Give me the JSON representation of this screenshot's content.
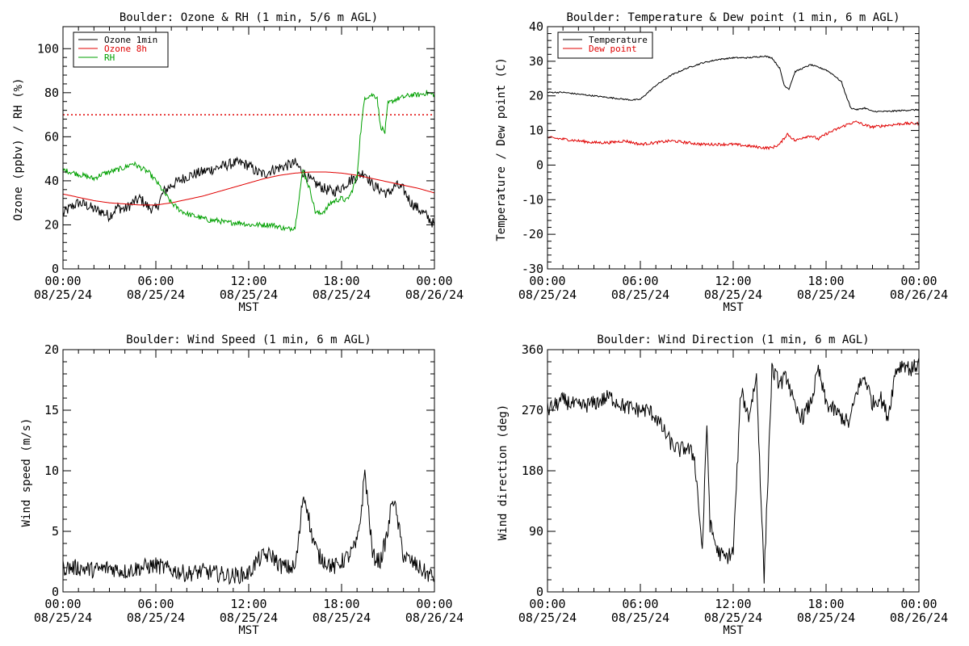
{
  "chart_data": [
    {
      "id": "ozone-rh",
      "type": "line",
      "title": "Boulder: Ozone & RH (1 min, 5/6 m AGL)",
      "xlabel": "MST",
      "ylabel": "Ozone (ppbv) / RH (%)",
      "xlim": [
        0,
        24
      ],
      "ylim": [
        0,
        110
      ],
      "xticks": [
        {
          "value": 0,
          "label": "00:00",
          "date": "08/25/24"
        },
        {
          "value": 6,
          "label": "06:00",
          "date": "08/25/24"
        },
        {
          "value": 12,
          "label": "12:00",
          "date": "08/25/24"
        },
        {
          "value": 18,
          "label": "18:00",
          "date": "08/25/24"
        },
        {
          "value": 24,
          "label": "00:00",
          "date": "08/26/24"
        }
      ],
      "yticks": [
        0,
        20,
        40,
        60,
        80,
        100
      ],
      "legend_position": "top-left",
      "reference_lines": [
        {
          "y": 70,
          "color": "#e00000",
          "style": "dotted"
        }
      ],
      "series": [
        {
          "name": "Ozone 1min",
          "color": "#000000",
          "noise": 2.5,
          "x": [
            0,
            0.5,
            1,
            1.5,
            2,
            2.5,
            3,
            3.5,
            4,
            4.5,
            5,
            5.5,
            6,
            6.5,
            7,
            7.5,
            8,
            8.5,
            9,
            9.5,
            10,
            10.5,
            11,
            11.5,
            12,
            12.5,
            13,
            13.5,
            14,
            14.5,
            15,
            15.5,
            16,
            16.5,
            17,
            17.5,
            18,
            18.5,
            19,
            19.5,
            20,
            20.5,
            21,
            21.5,
            22,
            22.5,
            23,
            23.5,
            24
          ],
          "y": [
            25,
            28,
            30,
            29,
            27,
            26,
            24,
            28,
            27,
            30,
            32,
            28,
            27,
            35,
            38,
            40,
            42,
            43,
            44,
            45,
            46,
            47,
            48,
            48,
            47,
            44,
            43,
            45,
            46,
            47,
            48,
            44,
            40,
            38,
            36,
            35,
            37,
            40,
            42,
            44,
            38,
            36,
            34,
            38,
            36,
            30,
            27,
            24,
            20
          ]
        },
        {
          "name": "Ozone 8h",
          "color": "#e00000",
          "noise": 0,
          "x": [
            0,
            1,
            2,
            3,
            4,
            5,
            6,
            7,
            8,
            9,
            10,
            11,
            12,
            13,
            14,
            15,
            16,
            17,
            18,
            19,
            20,
            21,
            22,
            23,
            24
          ],
          "y": [
            34,
            32.5,
            31,
            30,
            29.5,
            29,
            29,
            30,
            31.5,
            33,
            35,
            37,
            39,
            41,
            42.5,
            43.5,
            44,
            44,
            43.5,
            42.5,
            41,
            39.5,
            38,
            36.5,
            34.5
          ]
        },
        {
          "name": "RH",
          "color": "#00a000",
          "noise": 1.2,
          "x": [
            0,
            0.5,
            1,
            1.5,
            2,
            2.5,
            3,
            3.5,
            4,
            4.5,
            5,
            5.5,
            6,
            6.5,
            7,
            7.5,
            8,
            8.5,
            9,
            9.5,
            10,
            10.5,
            11,
            11.5,
            12,
            12.5,
            13,
            13.5,
            14,
            14.5,
            15,
            15.2,
            15.5,
            16,
            16.3,
            16.6,
            17,
            17.3,
            17.6,
            18,
            18.3,
            18.6,
            19,
            19.2,
            19.5,
            20,
            20.3,
            20.5,
            20.8,
            21,
            21.5,
            22,
            22.5,
            23,
            23.5,
            24
          ],
          "y": [
            45,
            44,
            43,
            42,
            41,
            43,
            44,
            45,
            46,
            48,
            46,
            44,
            40,
            35,
            30,
            27,
            25,
            24,
            23,
            22,
            22,
            21,
            21,
            21,
            20,
            20,
            20,
            20,
            19,
            18,
            19,
            30,
            45,
            35,
            26,
            25,
            27,
            30,
            31,
            32,
            31,
            34,
            42,
            60,
            78,
            79,
            78,
            65,
            62,
            75,
            77,
            78,
            79,
            79,
            80,
            79
          ]
        }
      ]
    },
    {
      "id": "temp-dew",
      "type": "line",
      "title": "Boulder: Temperature & Dew point (1 min, 6 m AGL)",
      "xlabel": "MST",
      "ylabel": "Temperature / Dew point (C)",
      "xlim": [
        0,
        24
      ],
      "ylim": [
        -30,
        40
      ],
      "xticks": [
        {
          "value": 0,
          "label": "00:00",
          "date": "08/25/24"
        },
        {
          "value": 6,
          "label": "06:00",
          "date": "08/25/24"
        },
        {
          "value": 12,
          "label": "12:00",
          "date": "08/25/24"
        },
        {
          "value": 18,
          "label": "18:00",
          "date": "08/25/24"
        },
        {
          "value": 24,
          "label": "00:00",
          "date": "08/26/24"
        }
      ],
      "yticks": [
        -30,
        -20,
        -10,
        0,
        10,
        20,
        30,
        40
      ],
      "legend_position": "top-left",
      "series": [
        {
          "name": "Temperature",
          "color": "#000000",
          "noise": 0.2,
          "x": [
            0,
            1,
            2,
            3,
            4,
            5,
            5.5,
            6,
            6.5,
            7,
            8,
            9,
            10,
            11,
            12,
            13,
            14,
            14.5,
            15,
            15.3,
            15.6,
            16,
            17,
            18,
            18.5,
            19,
            19.3,
            19.6,
            20,
            20.5,
            21,
            22,
            23,
            24
          ],
          "y": [
            21,
            21,
            20.5,
            20,
            19.5,
            19,
            18.8,
            19,
            21,
            23,
            26,
            28,
            29.5,
            30.5,
            31,
            31,
            31.5,
            31,
            28,
            23,
            22,
            27,
            29,
            27.5,
            26,
            24,
            20,
            16.5,
            16,
            16.5,
            15.5,
            15.5,
            15.8,
            16
          ]
        },
        {
          "name": "Dew point",
          "color": "#e00000",
          "noise": 0.4,
          "x": [
            0,
            1,
            2,
            3,
            4,
            5,
            6,
            7,
            8,
            9,
            10,
            11,
            12,
            13,
            14,
            14.5,
            15,
            15.5,
            16,
            16.5,
            17,
            17.5,
            18,
            18.5,
            19,
            19.5,
            20,
            20.5,
            21,
            22,
            23,
            24
          ],
          "y": [
            8,
            7.5,
            7,
            6.5,
            6.5,
            7,
            6,
            6.5,
            7,
            6.5,
            6,
            6,
            6,
            5.5,
            5,
            5,
            6,
            9,
            7,
            8,
            8.5,
            7.5,
            9,
            10,
            11,
            12,
            12.5,
            11.5,
            11,
            11.5,
            12,
            12
          ]
        }
      ]
    },
    {
      "id": "wind-speed",
      "type": "line",
      "title": "Boulder: Wind Speed (1 min, 6 m AGL)",
      "xlabel": "MST",
      "ylabel": "Wind speed (m/s)",
      "xlim": [
        0,
        24
      ],
      "ylim": [
        0,
        20
      ],
      "xticks": [
        {
          "value": 0,
          "label": "00:00",
          "date": "08/25/24"
        },
        {
          "value": 6,
          "label": "06:00",
          "date": "08/25/24"
        },
        {
          "value": 12,
          "label": "12:00",
          "date": "08/25/24"
        },
        {
          "value": 18,
          "label": "18:00",
          "date": "08/25/24"
        },
        {
          "value": 24,
          "label": "00:00",
          "date": "08/26/24"
        }
      ],
      "yticks": [
        0,
        5,
        10,
        15,
        20
      ],
      "series": [
        {
          "name": "",
          "color": "#000000",
          "noise": 0.7,
          "x": [
            0,
            1,
            2,
            3,
            4,
            5,
            6,
            7,
            8,
            9,
            10,
            11,
            12,
            12.5,
            13,
            13.5,
            14,
            14.5,
            15,
            15.3,
            15.5,
            15.8,
            16,
            16.5,
            17,
            17.5,
            18,
            18.5,
            19,
            19.3,
            19.5,
            19.8,
            20,
            20.5,
            21,
            21.3,
            21.6,
            22,
            22.5,
            23,
            23.5,
            24
          ],
          "y": [
            2,
            2,
            1.8,
            2,
            1.7,
            2,
            2.2,
            1.8,
            1.5,
            1.7,
            1.5,
            1.3,
            1.5,
            2.5,
            3,
            3,
            2.2,
            2,
            2,
            5,
            8,
            7,
            5,
            3,
            2.5,
            2,
            2.5,
            3,
            4,
            7,
            10,
            6,
            3,
            2.5,
            5,
            8,
            6,
            3,
            2.5,
            2,
            1.5,
            1.2
          ]
        }
      ]
    },
    {
      "id": "wind-direction",
      "type": "line",
      "title": "Boulder: Wind Direction (1 min, 6 m AGL)",
      "xlabel": "MST",
      "ylabel": "Wind direction (deg)",
      "xlim": [
        0,
        24
      ],
      "ylim": [
        0,
        360
      ],
      "xticks": [
        {
          "value": 0,
          "label": "00:00",
          "date": "08/25/24"
        },
        {
          "value": 6,
          "label": "06:00",
          "date": "08/25/24"
        },
        {
          "value": 12,
          "label": "12:00",
          "date": "08/25/24"
        },
        {
          "value": 18,
          "label": "18:00",
          "date": "08/25/24"
        },
        {
          "value": 24,
          "label": "00:00",
          "date": "08/26/24"
        }
      ],
      "yticks": [
        0,
        90,
        180,
        270,
        360
      ],
      "series": [
        {
          "name": "",
          "color": "#000000",
          "noise": 12,
          "x": [
            0,
            1,
            2,
            3,
            4,
            5,
            6,
            6.5,
            7,
            7.5,
            8,
            8.5,
            9,
            9.5,
            9.8,
            10,
            10.3,
            10.5,
            11,
            11.5,
            12,
            12.5,
            13,
            13.5,
            14,
            14.5,
            15,
            15.5,
            16,
            16.5,
            17,
            17.5,
            18,
            18.5,
            19,
            19.5,
            20,
            20.5,
            21,
            21.5,
            22,
            22.5,
            23,
            23.5,
            24
          ],
          "y": [
            270,
            285,
            275,
            280,
            290,
            275,
            270,
            270,
            260,
            240,
            220,
            210,
            215,
            200,
            120,
            60,
            250,
            100,
            60,
            50,
            60,
            300,
            260,
            320,
            20,
            330,
            310,
            320,
            270,
            260,
            280,
            330,
            280,
            270,
            260,
            250,
            300,
            320,
            280,
            290,
            260,
            330,
            340,
            330,
            340
          ]
        }
      ]
    }
  ]
}
